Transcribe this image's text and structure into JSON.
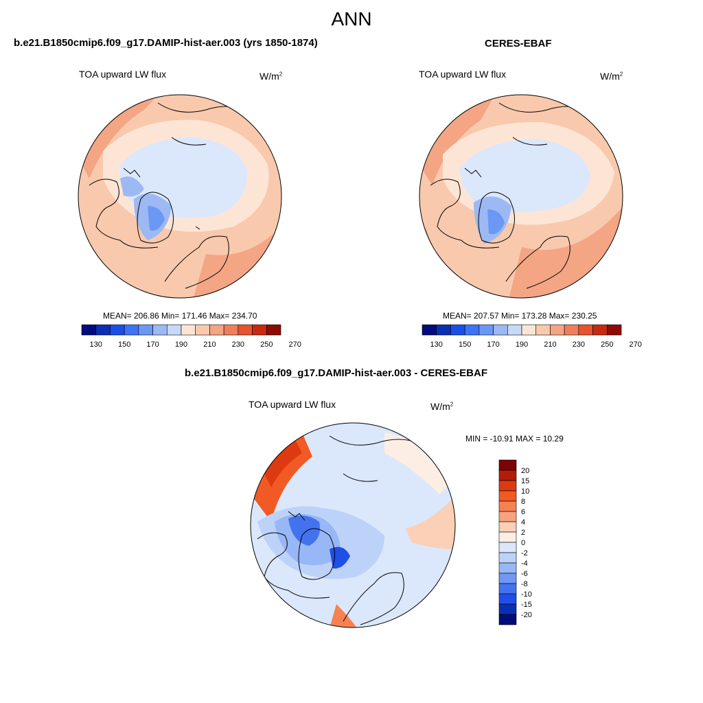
{
  "title": "ANN",
  "panels": [
    {
      "id": "model",
      "title": "b.e21.B1850cmip6.f09_g17.DAMIP-hist-aer.003 (yrs 1850-1874)",
      "variable": "TOA upward LW flux",
      "units_base": "W/m",
      "units_exp": "2",
      "stats": "MEAN= 206.86  Min= 171.46  Max= 234.70",
      "colorbar_ticks": [
        "130",
        "150",
        "170",
        "190",
        "210",
        "230",
        "250",
        "270"
      ]
    },
    {
      "id": "obs",
      "title": "CERES-EBAF",
      "variable": "TOA upward LW flux",
      "units_base": "W/m",
      "units_exp": "2",
      "stats": "MEAN= 207.57  Min= 173.28  Max= 230.25",
      "colorbar_ticks": [
        "130",
        "150",
        "170",
        "190",
        "210",
        "230",
        "250",
        "270"
      ]
    },
    {
      "id": "diff",
      "title": "b.e21.B1850cmip6.f09_g17.DAMIP-hist-aer.003 - CERES-EBAF",
      "variable": "TOA upward LW flux",
      "units_base": "W/m",
      "units_exp": "2",
      "stats": "MIN = -10.91 MAX =  10.29",
      "colorbar_ticks": [
        "20",
        "15",
        "10",
        "8",
        "6",
        "4",
        "2",
        "0",
        "-2",
        "-4",
        "-6",
        "-8",
        "-10",
        "-15",
        "-20"
      ]
    }
  ],
  "colors": {
    "seq_colorbar": [
      "#000c7d",
      "#0a2fb2",
      "#1b4fe6",
      "#3e73f5",
      "#6b97f5",
      "#9cb9f4",
      "#c6d9f7",
      "#fde5d6",
      "#f9c9ad",
      "#f3a584",
      "#ee7f5c",
      "#e6532f",
      "#c8290f",
      "#8e0b04"
    ],
    "diff_colorbar": [
      "#7b0404",
      "#b31d07",
      "#dd3a12",
      "#f25a25",
      "#f78152",
      "#f7a37f",
      "#fbd0b6",
      "#fdeee3",
      "#dbe7fb",
      "#bcd2f9",
      "#98b7f6",
      "#6f97f3",
      "#4472ef",
      "#1f4fe7",
      "#0a2fb4",
      "#000c79"
    ]
  }
}
